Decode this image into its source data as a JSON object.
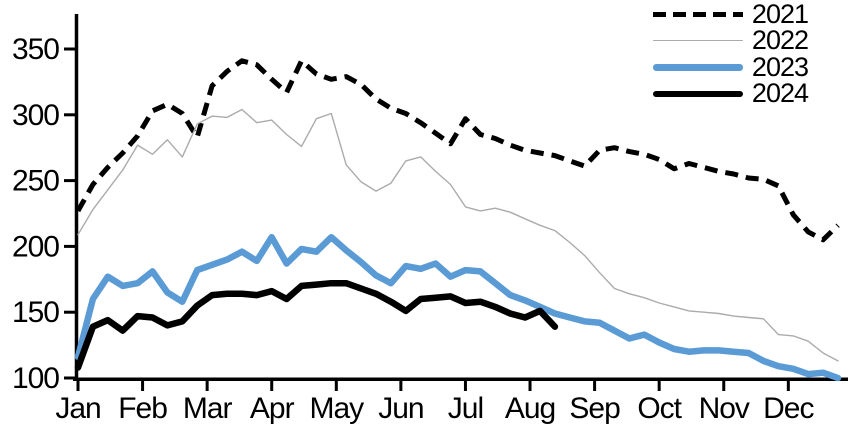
{
  "chart_data": {
    "type": "line",
    "title": "",
    "x_unit": "week",
    "points_per_year": 52,
    "grid": false,
    "legend_position": "top-right",
    "axis_color": "#000000",
    "x_axis": {
      "tick_labels": [
        "Jan",
        "Feb",
        "Mar",
        "Apr",
        "May",
        "Jun",
        "Jul",
        "Aug",
        "Sep",
        "Oct",
        "Nov",
        "Dec"
      ]
    },
    "y_axis": {
      "min": 100,
      "max": 350,
      "tick_step": 50,
      "ticks": [
        100,
        150,
        200,
        250,
        300,
        350
      ]
    },
    "series": [
      {
        "name": "2021",
        "color": "#000000",
        "style": "dashed",
        "width": 5,
        "values": [
          227,
          247,
          260,
          271,
          284,
          303,
          308,
          301,
          283,
          322,
          333,
          341,
          338,
          327,
          317,
          341,
          331,
          327,
          329,
          323,
          312,
          305,
          301,
          294,
          286,
          278,
          297,
          285,
          282,
          277,
          273,
          271,
          269,
          265,
          261,
          273,
          275,
          272,
          270,
          266,
          259,
          263,
          260,
          257,
          255,
          252,
          251,
          246,
          224,
          211,
          205,
          216
        ]
      },
      {
        "name": "2022",
        "color": "#ABABAB",
        "style": "solid",
        "width": 1.4,
        "values": [
          209,
          228,
          243,
          258,
          277,
          270,
          281,
          268,
          293,
          299,
          298,
          304,
          294,
          296,
          285,
          276,
          297,
          301,
          262,
          249,
          242,
          248,
          265,
          268,
          257,
          247,
          230,
          227,
          229,
          226,
          221,
          216,
          212,
          203,
          193,
          180,
          168,
          164,
          161,
          157,
          154,
          151,
          150,
          149,
          147,
          146,
          145,
          133,
          132,
          128,
          119,
          113
        ]
      },
      {
        "name": "2023",
        "color": "#5B9BD5",
        "style": "solid",
        "width": 6.5,
        "values": [
          116,
          160,
          177,
          170,
          172,
          181,
          165,
          158,
          182,
          186,
          190,
          196,
          189,
          207,
          187,
          198,
          196,
          207,
          197,
          188,
          178,
          172,
          185,
          183,
          187,
          177,
          182,
          181,
          172,
          163,
          159,
          154,
          149,
          146,
          143,
          142,
          136,
          130,
          133,
          127,
          122,
          120,
          121,
          121,
          120,
          119,
          113,
          109,
          107,
          103,
          104,
          100
        ]
      },
      {
        "name": "2024",
        "color": "#000000",
        "style": "solid",
        "width": 6.5,
        "values": [
          108,
          139,
          144,
          136,
          147,
          146,
          140,
          143,
          155,
          163,
          164,
          164,
          163,
          166,
          160,
          170,
          171,
          172,
          172,
          168,
          164,
          158,
          151,
          160,
          161,
          162,
          157,
          158,
          154,
          149,
          146,
          151,
          139
        ]
      }
    ]
  }
}
